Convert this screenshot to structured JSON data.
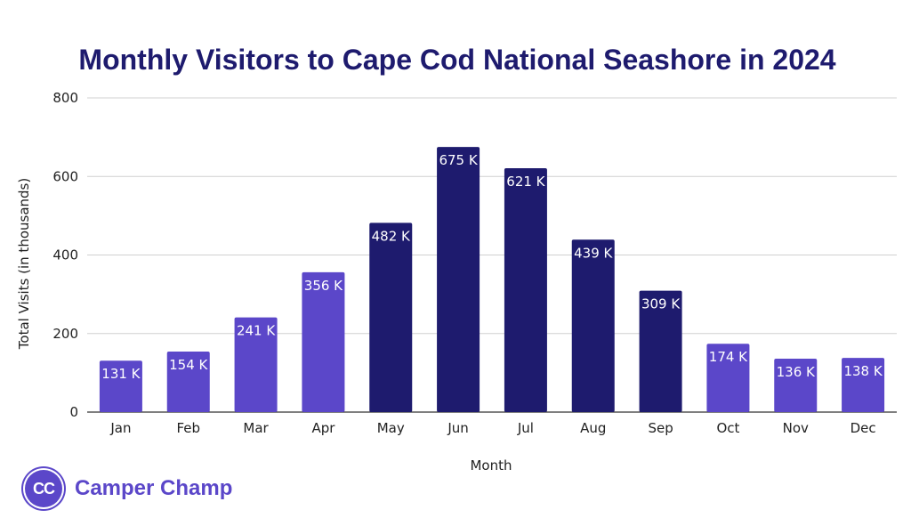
{
  "chart_data": {
    "type": "bar",
    "title": "Monthly Visitors to Cape Cod National Seashore in 2024",
    "xlabel": "Month",
    "ylabel": "Total Visits (in thousands)",
    "categories": [
      "Jan",
      "Feb",
      "Mar",
      "Apr",
      "May",
      "Jun",
      "Jul",
      "Aug",
      "Sep",
      "Oct",
      "Nov",
      "Dec"
    ],
    "values": [
      131,
      154,
      241,
      356,
      482,
      675,
      621,
      439,
      309,
      174,
      136,
      138
    ],
    "data_labels": [
      "131 K",
      "154 K",
      "241 K",
      "356 K",
      "482 K",
      "675 K",
      "621 K",
      "439 K",
      "309 K",
      "174 K",
      "136 K",
      "138 K"
    ],
    "bar_colors": [
      "#5b47c9",
      "#5b47c9",
      "#5b47c9",
      "#5b47c9",
      "#1e1b6e",
      "#1e1b6e",
      "#1e1b6e",
      "#1e1b6e",
      "#1e1b6e",
      "#5b47c9",
      "#5b47c9",
      "#5b47c9"
    ],
    "ylim": [
      0,
      800
    ],
    "yticks": [
      0,
      200,
      400,
      600,
      800
    ],
    "grid": true,
    "legend": "none"
  },
  "brand": {
    "logo_text": "CC",
    "name": "Camper Champ"
  },
  "colors": {
    "title": "#1e1b6e",
    "light_bar": "#5b47c9",
    "dark_bar": "#1e1b6e",
    "brand": "#5b47c9"
  }
}
